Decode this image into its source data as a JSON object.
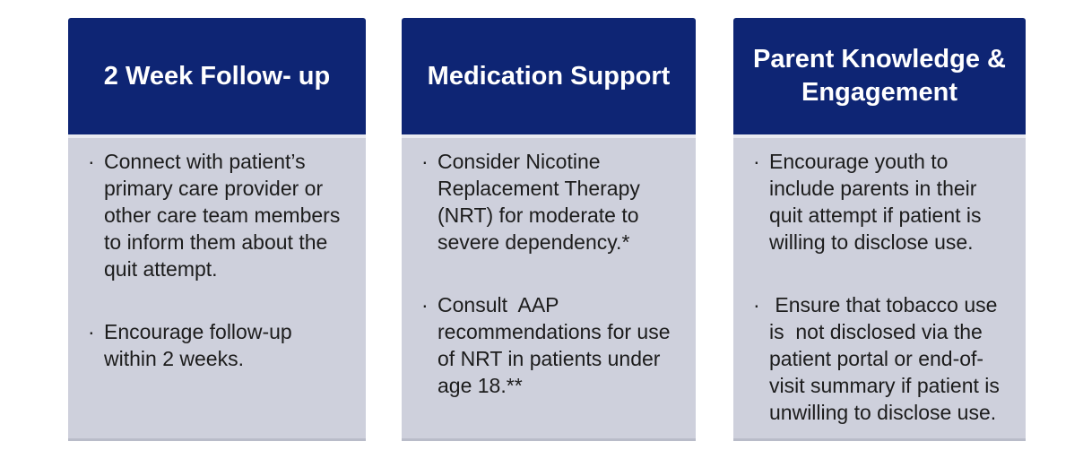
{
  "bullet_glyph": "·",
  "colors": {
    "header_bg": "#0e2574",
    "header_text": "#ffffff",
    "body_bg": "#ced0dc",
    "body_text": "#1c1c1c",
    "body_top_highlight": "#e9eaf1",
    "body_bottom_edge": "#b9bcc9",
    "page_bg": "#ffffff"
  },
  "cards": [
    {
      "title": "2 Week Follow- up",
      "bullets": [
        "Connect with patient’s primary care provider or other care team members to inform them about the quit attempt.",
        "Encourage follow-up within 2 weeks."
      ]
    },
    {
      "title": "Medication Support",
      "bullets": [
        "Consider Nicotine Replacement Therapy (NRT) for moderate to severe dependency.*",
        "Consult  AAP recommendations for use of NRT in patients under age 18.**"
      ]
    },
    {
      "title": "Parent Knowledge & Engagement",
      "bullets": [
        "Encourage youth to include parents in their quit attempt if patient is willing to disclose use.",
        " Ensure that tobacco use is  not disclosed via the patient portal or end-of-visit summary if patient is unwilling to disclose use."
      ]
    }
  ]
}
